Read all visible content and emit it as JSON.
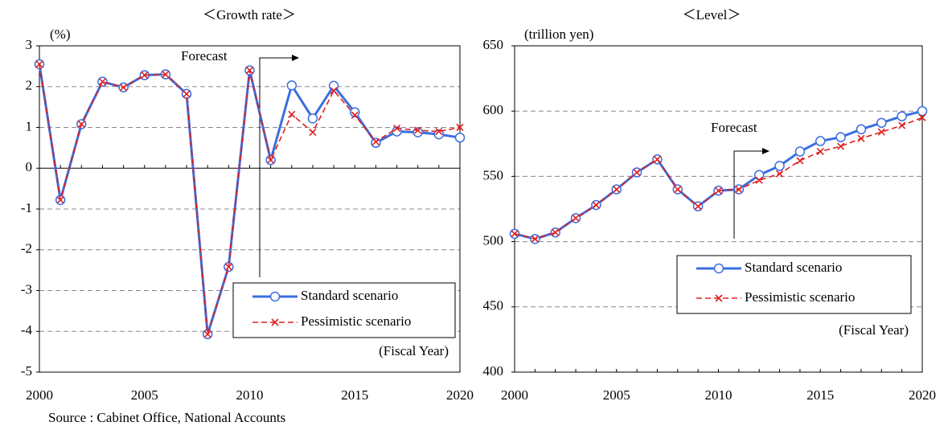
{
  "chart_data": [
    {
      "type": "line",
      "title": "＜Growth rate＞",
      "y_label": "(%)",
      "x_label": "(Fiscal Year)",
      "annotation": "Forecast",
      "x": [
        2000,
        2001,
        2002,
        2003,
        2004,
        2005,
        2006,
        2007,
        2008,
        2009,
        2010,
        2011,
        2012,
        2013,
        2014,
        2015,
        2016,
        2017,
        2018,
        2019,
        2020
      ],
      "series": [
        {
          "name": "Standard scenario",
          "color": "#3b6ee0",
          "marker": "circle",
          "dashed": false,
          "values": [
            2.55,
            -0.78,
            1.08,
            2.12,
            1.98,
            2.28,
            2.3,
            1.82,
            -4.07,
            -2.42,
            2.4,
            0.2,
            2.03,
            1.22,
            2.02,
            1.37,
            0.62,
            0.9,
            0.88,
            0.83,
            0.75
          ]
        },
        {
          "name": "Pessimistic scenario",
          "color": "#e02020",
          "marker": "x",
          "dashed": true,
          "values": [
            2.55,
            -0.78,
            1.08,
            2.12,
            1.98,
            2.28,
            2.3,
            1.82,
            -4.07,
            -2.42,
            2.4,
            0.2,
            1.32,
            0.88,
            1.9,
            1.3,
            0.65,
            0.98,
            0.93,
            0.9,
            1.0
          ]
        }
      ],
      "xlim": [
        2000,
        2020
      ],
      "xticks": [
        2000,
        2005,
        2010,
        2015,
        2020
      ],
      "ylim": [
        -5,
        3
      ],
      "yticks": [
        -5,
        -4,
        -3,
        -2,
        -1,
        0,
        1,
        2,
        3
      ],
      "grid": true
    },
    {
      "type": "line",
      "title": "＜Level＞",
      "y_label": "(trillion yen)",
      "x_label": "(Fiscal Year)",
      "annotation": "Forecast",
      "x": [
        2000,
        2001,
        2002,
        2003,
        2004,
        2005,
        2006,
        2007,
        2008,
        2009,
        2010,
        2011,
        2012,
        2013,
        2014,
        2015,
        2016,
        2017,
        2018,
        2019,
        2020
      ],
      "series": [
        {
          "name": "Standard scenario",
          "color": "#3b6ee0",
          "marker": "circle",
          "dashed": false,
          "values": [
            506,
            502,
            507,
            518,
            528,
            540,
            553,
            563,
            540,
            527,
            539,
            540,
            551,
            558,
            569,
            577,
            580,
            586,
            591,
            596,
            600
          ]
        },
        {
          "name": "Pessimistic scenario",
          "color": "#e02020",
          "marker": "x",
          "dashed": true,
          "values": [
            506,
            502,
            507,
            518,
            528,
            540,
            553,
            563,
            540,
            527,
            539,
            540,
            547,
            552,
            562,
            569,
            573,
            579,
            584,
            589,
            595
          ]
        }
      ],
      "xlim": [
        2000,
        2020
      ],
      "xticks": [
        2000,
        2005,
        2010,
        2015,
        2020
      ],
      "ylim": [
        400,
        650
      ],
      "yticks": [
        400,
        450,
        500,
        550,
        600,
        650
      ],
      "grid": true
    }
  ],
  "source": "Source : Cabinet Office, National Accounts"
}
